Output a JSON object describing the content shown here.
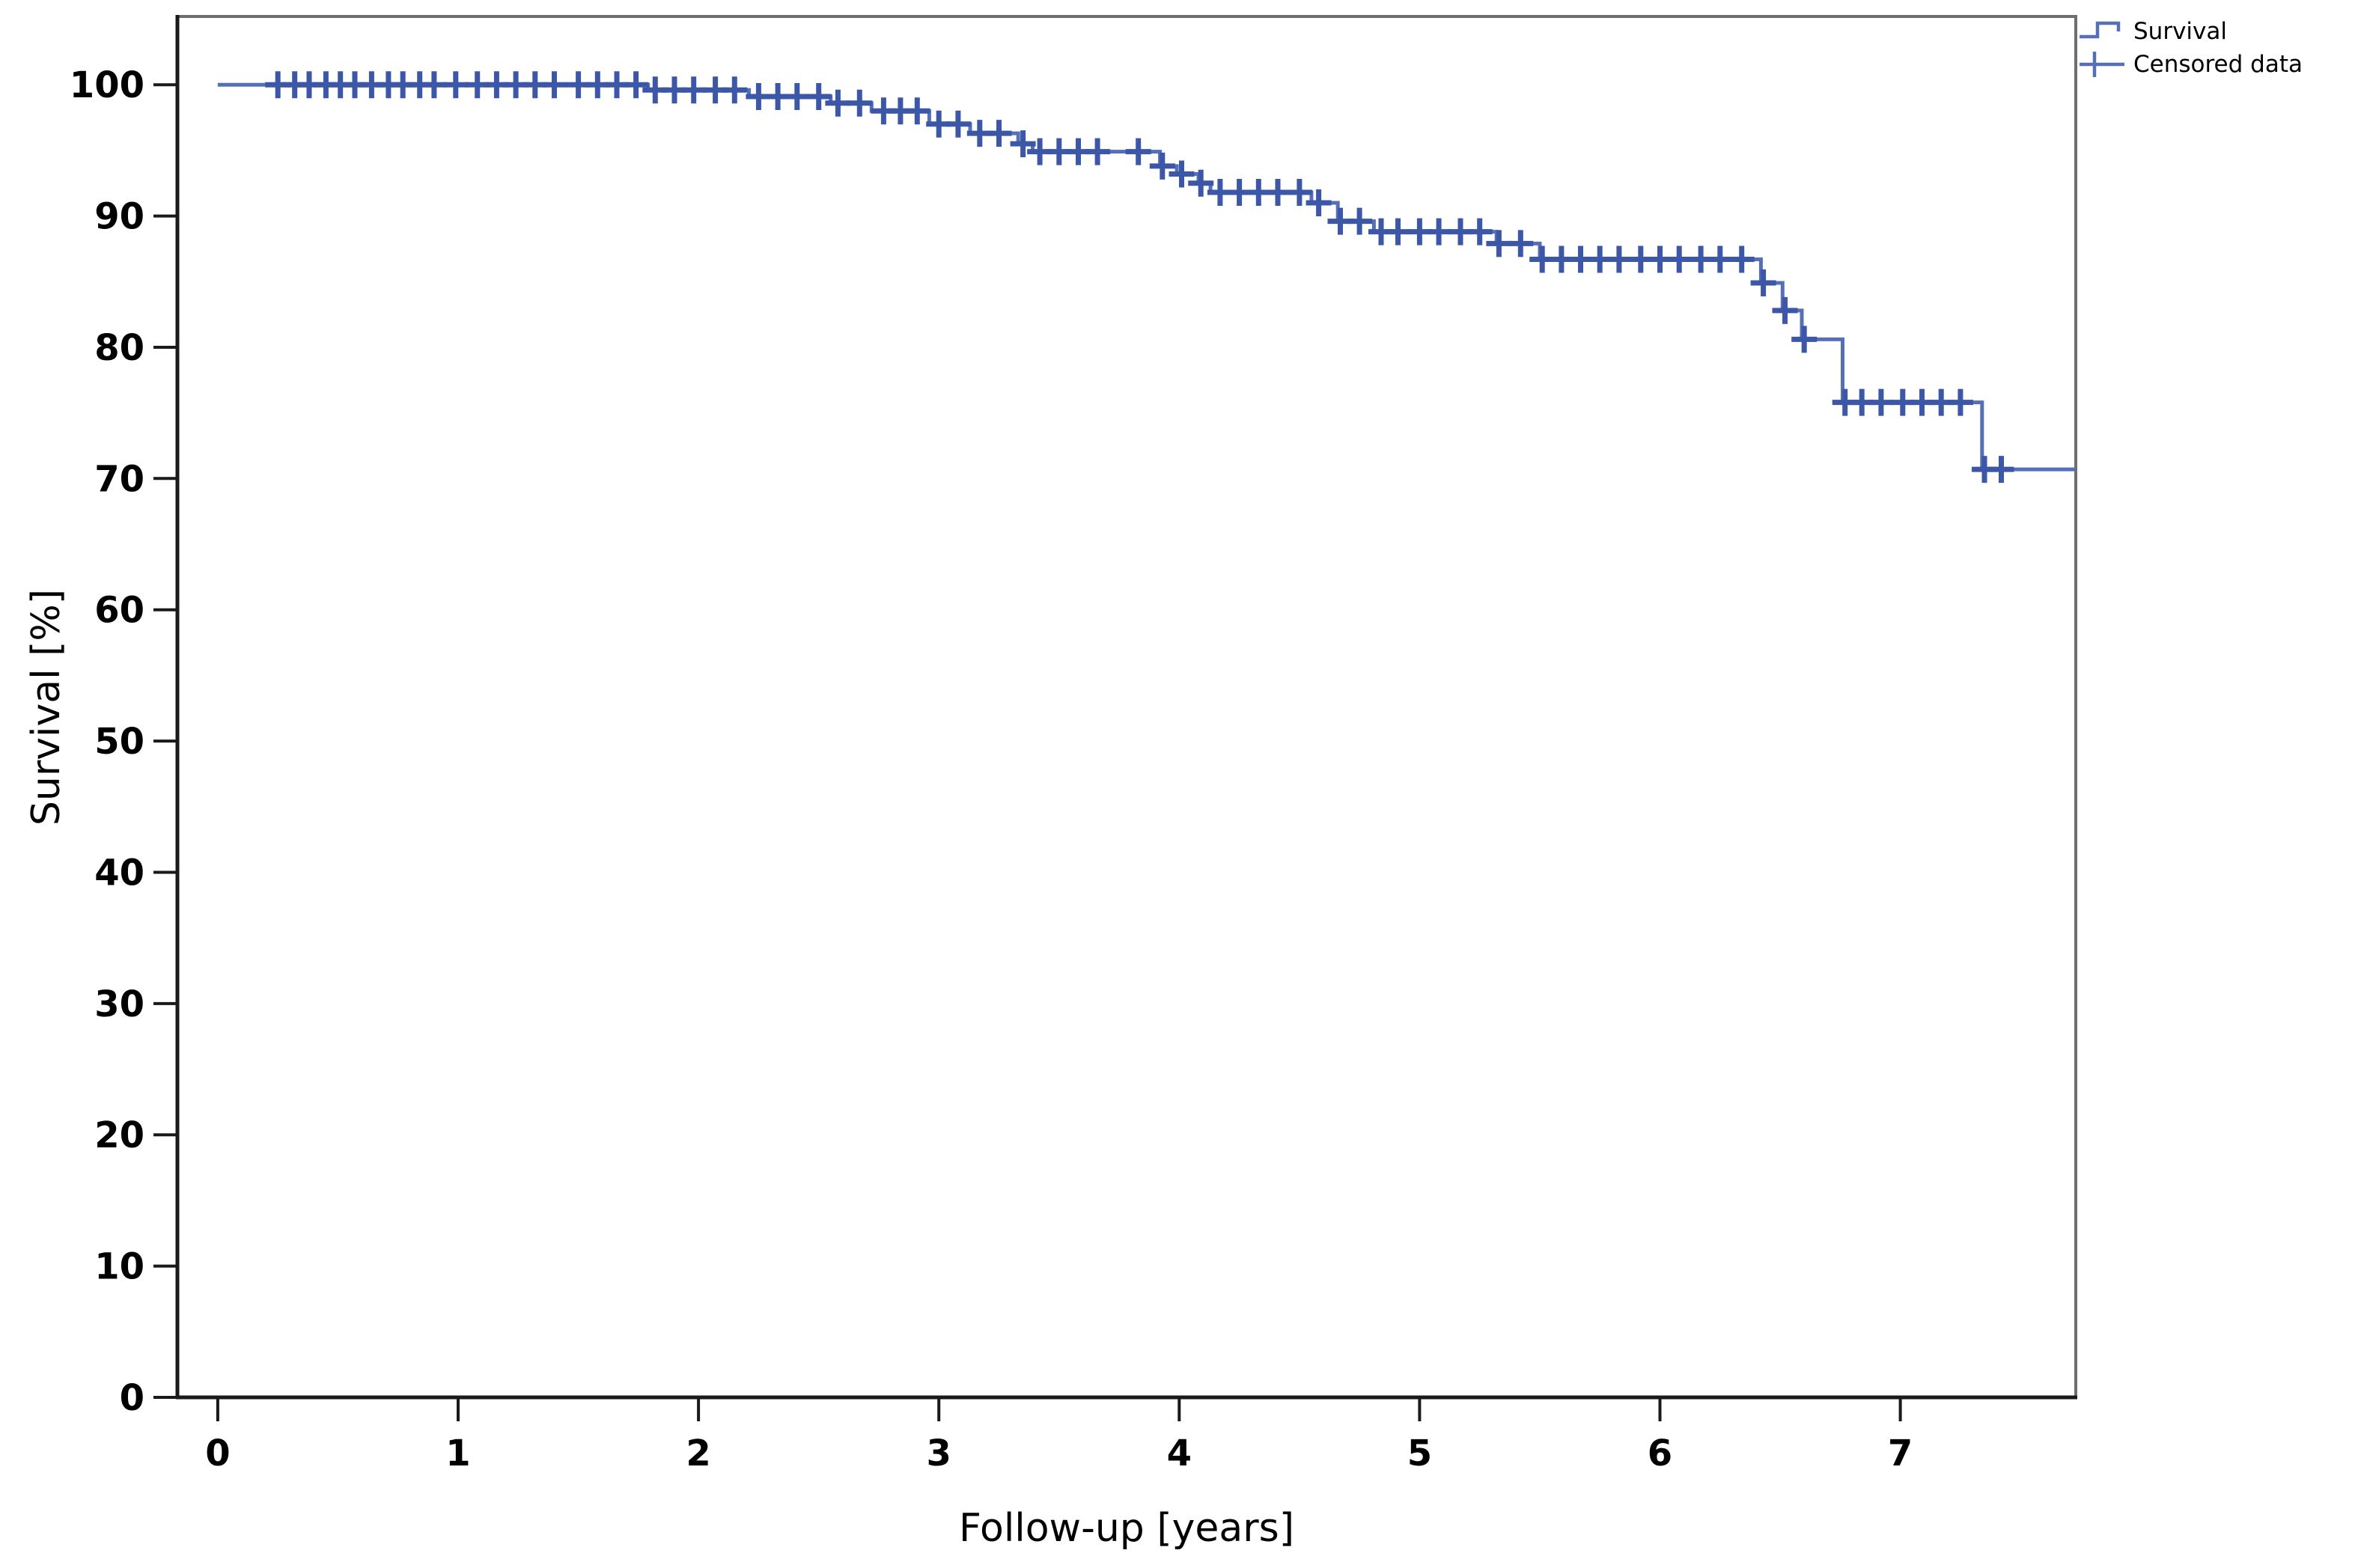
{
  "chart_data": {
    "type": "line",
    "chart_kind": "kaplan_meier_survival_step",
    "title": "",
    "xlabel": "Follow-up [years]",
    "ylabel": "Survival [%]",
    "xlim": [
      -0.168,
      7.73
    ],
    "ylim": [
      0,
      105.2
    ],
    "x_ticks": [
      0,
      1,
      2,
      3,
      4,
      5,
      6,
      7
    ],
    "y_ticks": [
      0,
      10,
      20,
      30,
      40,
      50,
      60,
      70,
      80,
      90,
      100
    ],
    "grid": false,
    "legend_position": "top-right-outside",
    "legend": [
      {
        "label": "Survival",
        "marker": "step-line"
      },
      {
        "label": "Censored data",
        "marker": "plus"
      }
    ],
    "series": [
      {
        "name": "Survival",
        "start": [
          0,
          100
        ],
        "end_time": 7.73,
        "steps": [
          [
            1.79,
            99.6
          ],
          [
            2.21,
            99.1
          ],
          [
            2.55,
            98.6
          ],
          [
            2.72,
            98.0
          ],
          [
            2.96,
            97.0
          ],
          [
            3.13,
            96.3
          ],
          [
            3.33,
            95.5
          ],
          [
            3.39,
            94.9
          ],
          [
            3.92,
            93.8
          ],
          [
            3.99,
            93.2
          ],
          [
            4.08,
            92.5
          ],
          [
            4.13,
            91.8
          ],
          [
            4.55,
            91.0
          ],
          [
            4.66,
            89.6
          ],
          [
            4.81,
            88.8
          ],
          [
            5.32,
            87.9
          ],
          [
            5.5,
            86.7
          ],
          [
            6.42,
            84.9
          ],
          [
            6.51,
            82.8
          ],
          [
            6.59,
            80.6
          ],
          [
            6.76,
            75.8
          ],
          [
            7.34,
            70.7
          ]
        ]
      }
    ],
    "censored_points": [
      [
        0.25,
        100
      ],
      [
        0.32,
        100
      ],
      [
        0.38,
        100
      ],
      [
        0.45,
        100
      ],
      [
        0.51,
        100
      ],
      [
        0.57,
        100
      ],
      [
        0.64,
        100
      ],
      [
        0.71,
        100
      ],
      [
        0.77,
        100
      ],
      [
        0.84,
        100
      ],
      [
        0.9,
        100
      ],
      [
        0.99,
        100
      ],
      [
        1.08,
        100
      ],
      [
        1.16,
        100
      ],
      [
        1.24,
        100
      ],
      [
        1.32,
        100
      ],
      [
        1.4,
        100
      ],
      [
        1.5,
        100
      ],
      [
        1.58,
        100
      ],
      [
        1.66,
        100
      ],
      [
        1.74,
        100
      ],
      [
        1.82,
        99.6
      ],
      [
        1.9,
        99.6
      ],
      [
        1.98,
        99.6
      ],
      [
        2.07,
        99.6
      ],
      [
        2.15,
        99.6
      ],
      [
        2.25,
        99.1
      ],
      [
        2.33,
        99.1
      ],
      [
        2.41,
        99.1
      ],
      [
        2.5,
        99.1
      ],
      [
        2.58,
        98.6
      ],
      [
        2.67,
        98.6
      ],
      [
        2.77,
        98.0
      ],
      [
        2.84,
        98.0
      ],
      [
        2.91,
        98.0
      ],
      [
        3.0,
        97.0
      ],
      [
        3.08,
        97.0
      ],
      [
        3.17,
        96.3
      ],
      [
        3.25,
        96.3
      ],
      [
        3.35,
        95.5
      ],
      [
        3.42,
        94.9
      ],
      [
        3.5,
        94.9
      ],
      [
        3.58,
        94.9
      ],
      [
        3.66,
        94.9
      ],
      [
        3.83,
        94.9
      ],
      [
        3.93,
        93.8
      ],
      [
        4.01,
        93.2
      ],
      [
        4.09,
        92.5
      ],
      [
        4.17,
        91.8
      ],
      [
        4.25,
        91.8
      ],
      [
        4.33,
        91.8
      ],
      [
        4.41,
        91.8
      ],
      [
        4.5,
        91.8
      ],
      [
        4.58,
        91.0
      ],
      [
        4.67,
        89.6
      ],
      [
        4.75,
        89.6
      ],
      [
        4.84,
        88.8
      ],
      [
        4.91,
        88.8
      ],
      [
        5.0,
        88.8
      ],
      [
        5.08,
        88.8
      ],
      [
        5.17,
        88.8
      ],
      [
        5.25,
        88.8
      ],
      [
        5.33,
        87.9
      ],
      [
        5.42,
        87.9
      ],
      [
        5.51,
        86.7
      ],
      [
        5.59,
        86.7
      ],
      [
        5.67,
        86.7
      ],
      [
        5.75,
        86.7
      ],
      [
        5.83,
        86.7
      ],
      [
        5.92,
        86.7
      ],
      [
        6.0,
        86.7
      ],
      [
        6.08,
        86.7
      ],
      [
        6.17,
        86.7
      ],
      [
        6.25,
        86.7
      ],
      [
        6.34,
        86.7
      ],
      [
        6.43,
        84.9
      ],
      [
        6.52,
        82.8
      ],
      [
        6.6,
        80.6
      ],
      [
        6.77,
        75.8
      ],
      [
        6.84,
        75.8
      ],
      [
        6.92,
        75.8
      ],
      [
        7.01,
        75.8
      ],
      [
        7.09,
        75.8
      ],
      [
        7.17,
        75.8
      ],
      [
        7.25,
        75.8
      ],
      [
        7.35,
        70.7
      ],
      [
        7.42,
        70.7
      ]
    ]
  },
  "colors": {
    "line": "#5670b8",
    "censor": "#3d57a8",
    "axis": "#1a1a1a",
    "border": "#6e6e6e",
    "text": "#000000"
  }
}
